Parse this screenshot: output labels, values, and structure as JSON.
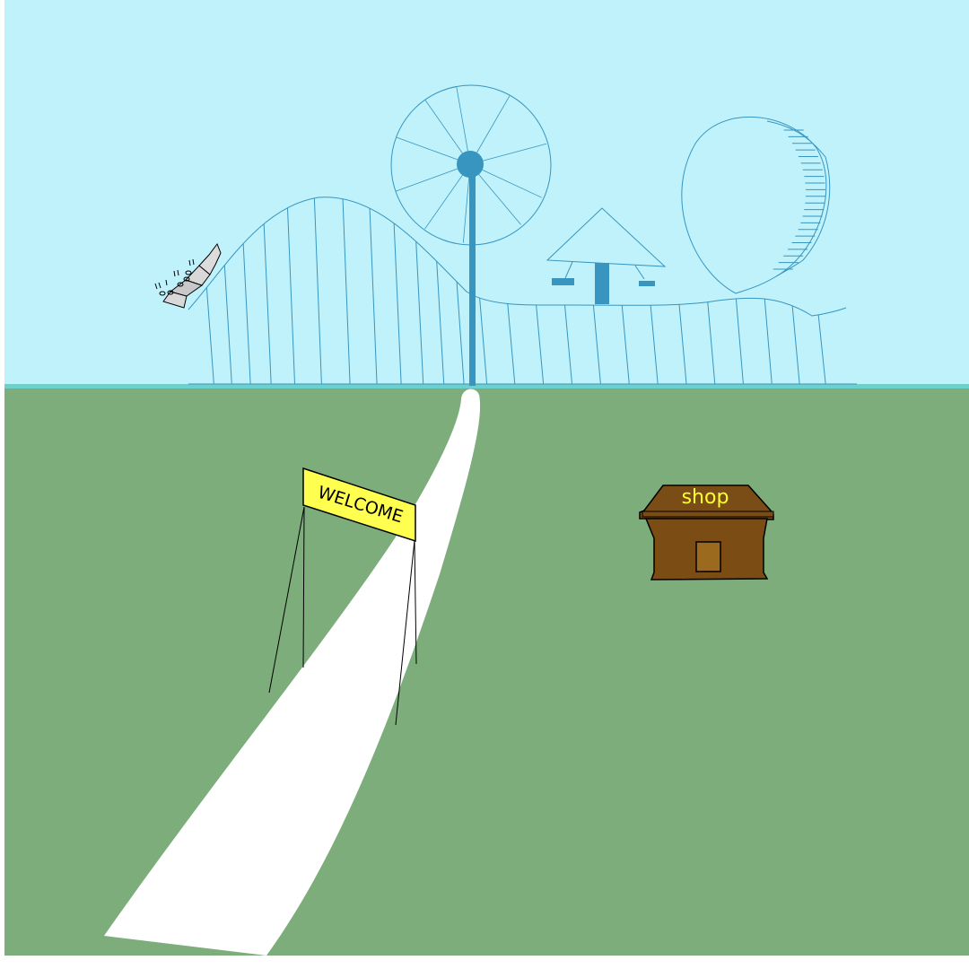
{
  "scene": {
    "sky_color": "#c0f2fc",
    "grass_color": "#7cad7b",
    "horizon_color": "#6fcfcb",
    "path_color": "#ffffff",
    "ride_line_color": "#3795bf"
  },
  "welcome_sign": {
    "label": "WELCOME",
    "color": "#ffff4f"
  },
  "shop": {
    "label": "shop",
    "label_color": "#ffff2a",
    "roof_color": "#7a4d16",
    "body_color": "#7b4c14",
    "door_color": "#9b6a1e"
  }
}
